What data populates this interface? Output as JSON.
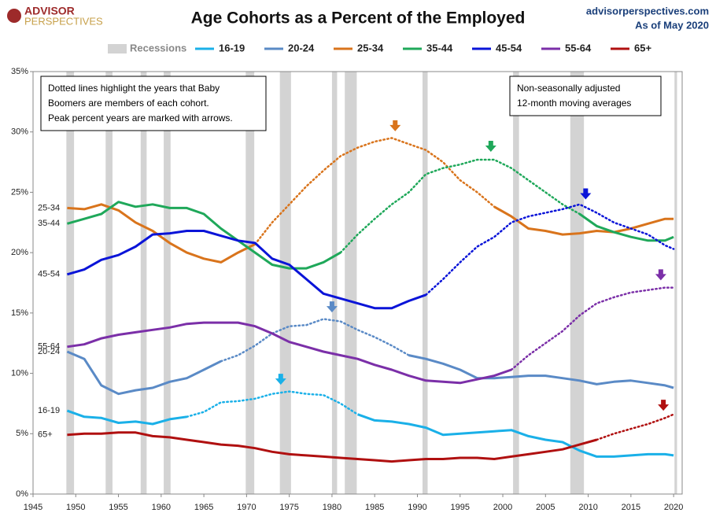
{
  "chart_data": {
    "type": "line",
    "title": "Age Cohorts as a Percent of the Employed",
    "logo": [
      "ADVISOR",
      "PERSPECTIVES"
    ],
    "source": "advisorperspectives.com",
    "date": "As of May 2020",
    "recession_label": "Recessions",
    "recession_color": "#d3d3d3",
    "recessions": [
      [
        1948.9,
        1949.8
      ],
      [
        1953.5,
        1954.3
      ],
      [
        1957.6,
        1958.3
      ],
      [
        1960.3,
        1961.1
      ],
      [
        1969.9,
        1970.9
      ],
      [
        1973.9,
        1975.2
      ],
      [
        1980.0,
        1980.6
      ],
      [
        1981.5,
        1982.9
      ],
      [
        1990.6,
        1991.2
      ],
      [
        2001.2,
        2001.9
      ],
      [
        2007.9,
        2009.5
      ],
      [
        2020.1,
        2020.4
      ]
    ],
    "note_left": [
      "Dotted lines highlight the years that Baby",
      "Boomers are members of each cohort.",
      "Peak percent years are marked with arrows."
    ],
    "note_right": [
      "Non-seasonally adjusted",
      "12-month moving averages"
    ],
    "x": [
      1949,
      1951,
      1953,
      1955,
      1957,
      1959,
      1961,
      1963,
      1965,
      1967,
      1969,
      1971,
      1973,
      1975,
      1977,
      1979,
      1981,
      1983,
      1985,
      1987,
      1989,
      1991,
      1993,
      1995,
      1997,
      1999,
      2001,
      2003,
      2005,
      2007,
      2009,
      2011,
      2013,
      2015,
      2017,
      2019,
      2020
    ],
    "xlim": [
      1945,
      2021
    ],
    "xticks": [
      1945,
      1950,
      1955,
      1960,
      1965,
      1970,
      1975,
      1980,
      1985,
      1990,
      1995,
      2000,
      2005,
      2010,
      2015,
      2020
    ],
    "ylim": [
      0,
      35
    ],
    "yticks": [
      {
        "value": 0,
        "label": "0%"
      },
      {
        "value": 5,
        "label": "5%"
      },
      {
        "value": 10,
        "label": "10%"
      },
      {
        "value": 15,
        "label": "15%"
      },
      {
        "value": 20,
        "label": "20%"
      },
      {
        "value": 25,
        "label": "25%"
      },
      {
        "value": 30,
        "label": "30%"
      },
      {
        "value": 35,
        "label": "35%"
      }
    ],
    "grid": false,
    "series": [
      {
        "name": "16-19",
        "color": "#1ab0e8",
        "peak": 1974,
        "values": [
          6.9,
          6.4,
          6.3,
          5.9,
          6.0,
          5.8,
          6.2,
          6.4,
          null,
          null,
          null,
          null,
          null,
          null,
          null,
          null,
          null,
          6.6,
          6.1,
          6.0,
          5.8,
          5.5,
          4.9,
          5.0,
          5.1,
          5.2,
          5.3,
          4.8,
          4.5,
          4.3,
          3.6,
          3.1,
          3.1,
          3.2,
          3.3,
          3.3,
          3.2
        ],
        "boomer_values": [
          null,
          null,
          null,
          null,
          null,
          null,
          null,
          6.4,
          6.8,
          7.6,
          7.7,
          7.9,
          8.3,
          8.5,
          8.3,
          8.2,
          7.5,
          6.6,
          null,
          null,
          null,
          null,
          null,
          null,
          null,
          null,
          null,
          null,
          null,
          null,
          null,
          null,
          null,
          null,
          null,
          null,
          null
        ]
      },
      {
        "name": "20-24",
        "color": "#5a8ac6",
        "peak": 1980,
        "values": [
          11.8,
          11.2,
          9.0,
          8.3,
          8.6,
          8.8,
          9.3,
          9.6,
          10.3,
          11.0,
          null,
          null,
          null,
          null,
          null,
          null,
          null,
          null,
          null,
          null,
          11.5,
          11.2,
          10.8,
          10.3,
          9.6,
          9.6,
          9.7,
          9.8,
          9.8,
          9.6,
          9.4,
          9.1,
          9.3,
          9.4,
          9.2,
          9.0,
          8.8
        ],
        "boomer_values": [
          null,
          null,
          null,
          null,
          null,
          null,
          null,
          null,
          null,
          11.0,
          11.5,
          12.3,
          13.3,
          13.9,
          14.0,
          14.5,
          14.3,
          13.6,
          13.0,
          12.3,
          11.5,
          null,
          null,
          null,
          null,
          null,
          null,
          null,
          null,
          null,
          null,
          null,
          null,
          null,
          null,
          null,
          null
        ]
      },
      {
        "name": "25-34",
        "color": "#d9741c",
        "peak": 1987.4,
        "values": [
          23.7,
          23.6,
          24.0,
          23.5,
          22.5,
          21.8,
          20.8,
          20.0,
          19.5,
          19.2,
          20.0,
          20.7,
          null,
          null,
          null,
          null,
          null,
          null,
          null,
          null,
          null,
          null,
          null,
          null,
          null,
          23.8,
          23.0,
          22.0,
          21.8,
          21.5,
          21.6,
          21.8,
          21.7,
          22.0,
          22.4,
          22.8,
          22.8
        ],
        "boomer_values": [
          null,
          null,
          null,
          null,
          null,
          null,
          null,
          null,
          null,
          null,
          null,
          20.7,
          22.5,
          24.0,
          25.5,
          26.8,
          28.0,
          28.7,
          29.2,
          29.5,
          29.0,
          28.5,
          27.5,
          26.0,
          25.0,
          23.8,
          null,
          null,
          null,
          null,
          null,
          null,
          null,
          null,
          null,
          null,
          null
        ]
      },
      {
        "name": "35-44",
        "color": "#1fa85a",
        "peak": 1998.6,
        "values": [
          22.4,
          22.8,
          23.2,
          24.2,
          23.8,
          24.0,
          23.7,
          23.7,
          23.2,
          22.0,
          21.0,
          20.0,
          19.0,
          18.7,
          18.7,
          19.2,
          20.0,
          null,
          null,
          null,
          null,
          null,
          null,
          null,
          null,
          null,
          null,
          null,
          null,
          null,
          23.2,
          22.2,
          21.7,
          21.3,
          21.0,
          21.0,
          21.3
        ],
        "boomer_values": [
          null,
          null,
          null,
          null,
          null,
          null,
          null,
          null,
          null,
          null,
          null,
          null,
          null,
          null,
          null,
          null,
          20.0,
          21.5,
          22.8,
          24.0,
          25.0,
          26.5,
          27.0,
          27.3,
          27.7,
          27.7,
          27.0,
          26.0,
          25.0,
          24.0,
          23.2,
          null,
          null,
          null,
          null,
          null,
          null
        ]
      },
      {
        "name": "45-54",
        "color": "#0a14d8",
        "peak": 2009.7,
        "values": [
          18.2,
          18.6,
          19.4,
          19.8,
          20.5,
          21.5,
          21.6,
          21.8,
          21.8,
          21.4,
          21.0,
          20.8,
          19.5,
          19.0,
          17.8,
          16.6,
          16.2,
          15.8,
          15.4,
          15.4,
          16.0,
          16.5,
          null,
          null,
          null,
          null,
          null,
          null,
          null,
          null,
          null,
          null,
          null,
          null,
          null,
          null,
          null
        ],
        "boomer_values": [
          null,
          null,
          null,
          null,
          null,
          null,
          null,
          null,
          null,
          null,
          null,
          null,
          null,
          null,
          null,
          null,
          null,
          null,
          null,
          null,
          null,
          16.5,
          17.8,
          19.2,
          20.5,
          21.3,
          22.5,
          23.0,
          23.3,
          23.6,
          24.0,
          23.3,
          22.5,
          22.0,
          21.5,
          20.6,
          20.3
        ]
      },
      {
        "name": "55-64",
        "color": "#7b2fa8",
        "peak": 2018.5,
        "values": [
          12.2,
          12.4,
          12.9,
          13.2,
          13.4,
          13.6,
          13.8,
          14.1,
          14.2,
          14.2,
          14.2,
          13.9,
          13.3,
          12.6,
          12.2,
          11.8,
          11.5,
          11.2,
          10.7,
          10.3,
          9.8,
          9.4,
          9.3,
          9.2,
          9.5,
          9.8,
          10.3,
          null,
          null,
          null,
          null,
          null,
          null,
          null,
          null,
          null,
          null
        ],
        "boomer_values": [
          null,
          null,
          null,
          null,
          null,
          null,
          null,
          null,
          null,
          null,
          null,
          null,
          null,
          null,
          null,
          null,
          null,
          null,
          null,
          null,
          null,
          null,
          null,
          null,
          null,
          null,
          10.3,
          11.5,
          12.5,
          13.5,
          14.8,
          15.8,
          16.3,
          16.7,
          16.9,
          17.1,
          17.1
        ]
      },
      {
        "name": "65+",
        "color": "#b01010",
        "peak": 2018.8,
        "values": [
          4.9,
          5.0,
          5.0,
          5.1,
          5.1,
          4.8,
          4.7,
          4.5,
          4.3,
          4.1,
          4.0,
          3.8,
          3.5,
          3.3,
          3.2,
          3.1,
          3.0,
          2.9,
          2.8,
          2.7,
          2.8,
          2.9,
          2.9,
          3.0,
          3.0,
          2.9,
          3.1,
          3.3,
          3.5,
          3.7,
          4.1,
          4.5,
          null,
          null,
          null,
          null,
          null
        ],
        "boomer_values": [
          null,
          null,
          null,
          null,
          null,
          null,
          null,
          null,
          null,
          null,
          null,
          null,
          null,
          null,
          null,
          null,
          null,
          null,
          null,
          null,
          null,
          null,
          null,
          null,
          null,
          null,
          null,
          null,
          null,
          null,
          null,
          4.5,
          5.0,
          5.4,
          5.8,
          6.3,
          6.6
        ]
      }
    ]
  }
}
